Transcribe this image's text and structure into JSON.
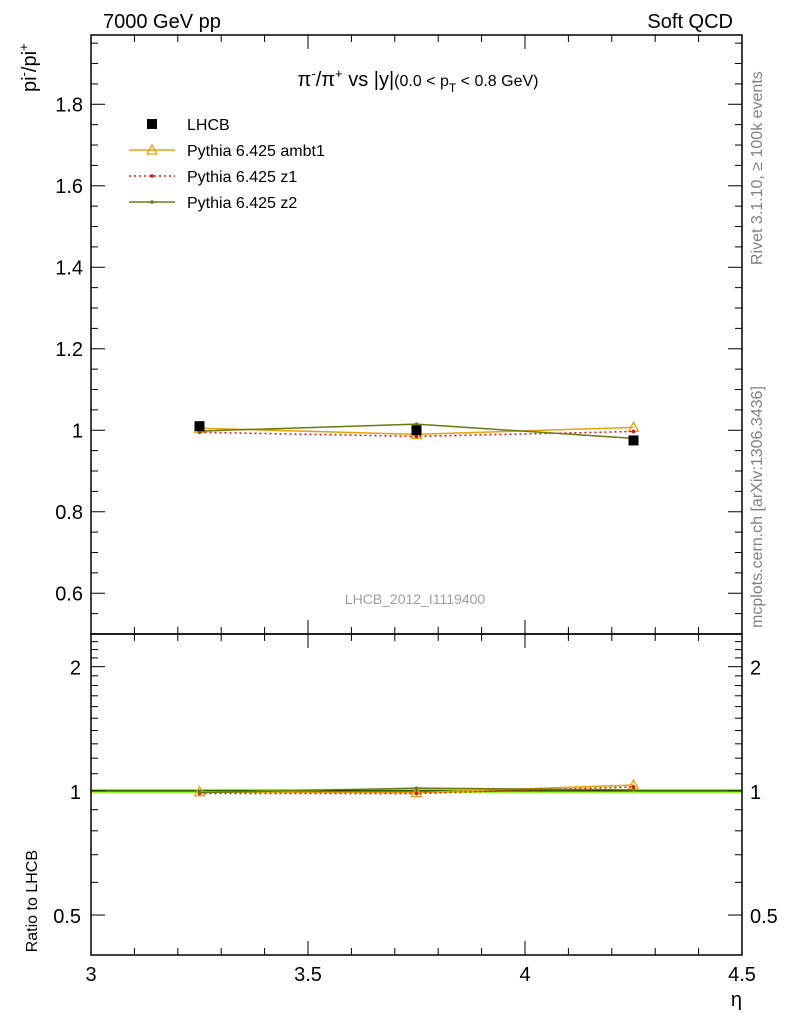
{
  "header": {
    "left": "7000 GeV pp",
    "right": "Soft QCD"
  },
  "side_labels": {
    "rivet": "Rivet 3.1.10, ≥ 100k events",
    "mcplots": "mcplots.cern.ch [arXiv:1306.3436]"
  },
  "chart_data": [
    {
      "type": "line",
      "panel": "main",
      "title_parts": {
        "pi": "π",
        "minus": "-",
        "slash": "/π",
        "plus": "+",
        "vs": " vs |y|",
        "range": "(0.0 < p",
        "sub": "T",
        "range_end": " < 0.8 GeV)"
      },
      "ylabel_parts": {
        "base": "pi",
        "sup1": "-",
        "mid": "/pi",
        "sup2": "+"
      },
      "watermark": "LHCB_2012_I1119400",
      "xlim": [
        3.0,
        4.5
      ],
      "ylim": [
        0.5,
        1.97
      ],
      "x_ticks": [
        3.0,
        3.5,
        4.0,
        4.5
      ],
      "y_ticks": [
        0.6,
        0.8,
        1.0,
        1.2,
        1.4,
        1.6,
        1.8
      ],
      "y_tick_labels": [
        "0.6",
        "0.8",
        "1",
        "1.2",
        "1.4",
        "1.6",
        "1.8"
      ],
      "legend_position": "top-left",
      "x": [
        3.25,
        3.75,
        4.25
      ],
      "series": [
        {
          "name": "LHCB",
          "values": [
            1.01,
            1.0,
            0.975
          ],
          "color": "#000000",
          "style": "square-markers"
        },
        {
          "name": "Pythia 6.425 ambt1",
          "values": [
            1.005,
            0.99,
            1.007
          ],
          "color": "#e8a10d",
          "style": "solid-triangle"
        },
        {
          "name": "Pythia 6.425 z1",
          "values": [
            0.995,
            0.985,
            0.997
          ],
          "color": "#e01010",
          "style": "dotted-dot"
        },
        {
          "name": "Pythia 6.425 z2",
          "values": [
            0.998,
            1.015,
            0.98
          ],
          "color": "#6b7a10",
          "style": "solid-dot"
        }
      ]
    },
    {
      "type": "line",
      "panel": "ratio",
      "ylabel": "Ratio to LHCB",
      "xlabel": "η",
      "xlim": [
        3.0,
        4.5
      ],
      "ylim": [
        0.4,
        2.4
      ],
      "y_scale": "log",
      "x_ticks": [
        3.0,
        3.5,
        4.0,
        4.5
      ],
      "x_tick_labels": [
        "3",
        "3.5",
        "4",
        "4.5"
      ],
      "y_ticks": [
        0.5,
        1.0,
        2.0
      ],
      "y_tick_labels": [
        "0.5",
        "1",
        "2"
      ],
      "x": [
        3.25,
        3.75,
        4.25
      ],
      "reference": {
        "value": 1.0,
        "band_color": "#80ff00"
      },
      "series": [
        {
          "name": "Pythia 6.425 ambt1",
          "values": [
            0.995,
            0.99,
            1.033
          ],
          "color": "#e8a10d"
        },
        {
          "name": "Pythia 6.425 z1",
          "values": [
            0.985,
            0.985,
            1.022
          ],
          "color": "#e01010"
        },
        {
          "name": "Pythia 6.425 z2",
          "values": [
            0.99,
            1.015,
            1.005
          ],
          "color": "#6b7a10"
        }
      ]
    }
  ]
}
